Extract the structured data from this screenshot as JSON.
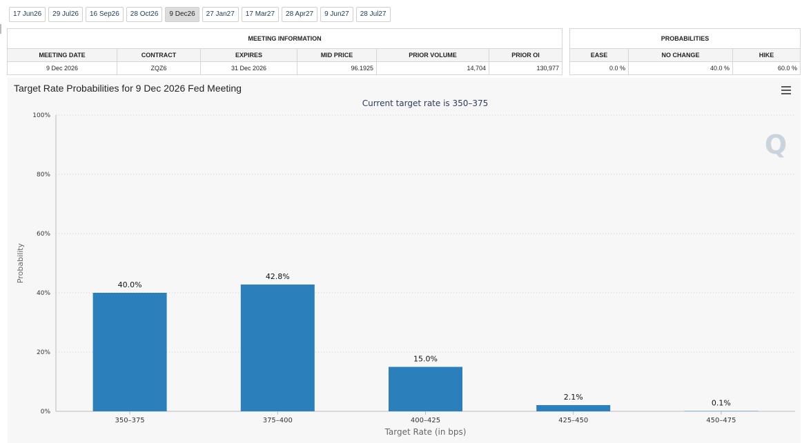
{
  "tabs": [
    "17 Jun26",
    "29 Jul26",
    "16 Sep26",
    "28 Oct26",
    "9 Dec26",
    "27 Jan27",
    "17 Mar27",
    "28 Apr27",
    "9 Jun27",
    "28 Jul27"
  ],
  "active_tab": 4,
  "meeting_info": {
    "title": "MEETING INFORMATION",
    "headers": [
      "MEETING DATE",
      "CONTRACT",
      "EXPIRES",
      "MID PRICE",
      "PRIOR VOLUME",
      "PRIOR OI"
    ],
    "row": [
      "9 Dec 2026",
      "ZQZ6",
      "31 Dec 2026",
      "96.1925",
      "14,704",
      "130,977"
    ]
  },
  "probabilities": {
    "title": "PROBABILITIES",
    "headers": [
      "EASE",
      "NO CHANGE",
      "HIKE"
    ],
    "row": [
      "0.0 %",
      "40.0 %",
      "60.0 %"
    ]
  },
  "chart": {
    "title": "Target Rate Probabilities for 9 Dec 2026 Fed Meeting",
    "subtitle": "Current target rate is 350–375",
    "menu_icon": "hamburger-menu-icon",
    "watermark": "Q",
    "bar_color": "#2b7fba"
  },
  "chart_data": {
    "type": "bar",
    "categories": [
      "350–375",
      "375–400",
      "400–425",
      "425–450",
      "450–475"
    ],
    "values": [
      40.0,
      42.8,
      15.0,
      2.1,
      0.1
    ],
    "data_labels": [
      "40.0%",
      "42.8%",
      "15.0%",
      "2.1%",
      "0.1%"
    ],
    "title": "Target Rate Probabilities for 9 Dec 2026 Fed Meeting",
    "xlabel": "Target Rate (in bps)",
    "ylabel": "Probability",
    "ylim": [
      0,
      100
    ],
    "yticks": [
      "0%",
      "20%",
      "40%",
      "60%",
      "80%",
      "100%"
    ],
    "grid": true
  }
}
